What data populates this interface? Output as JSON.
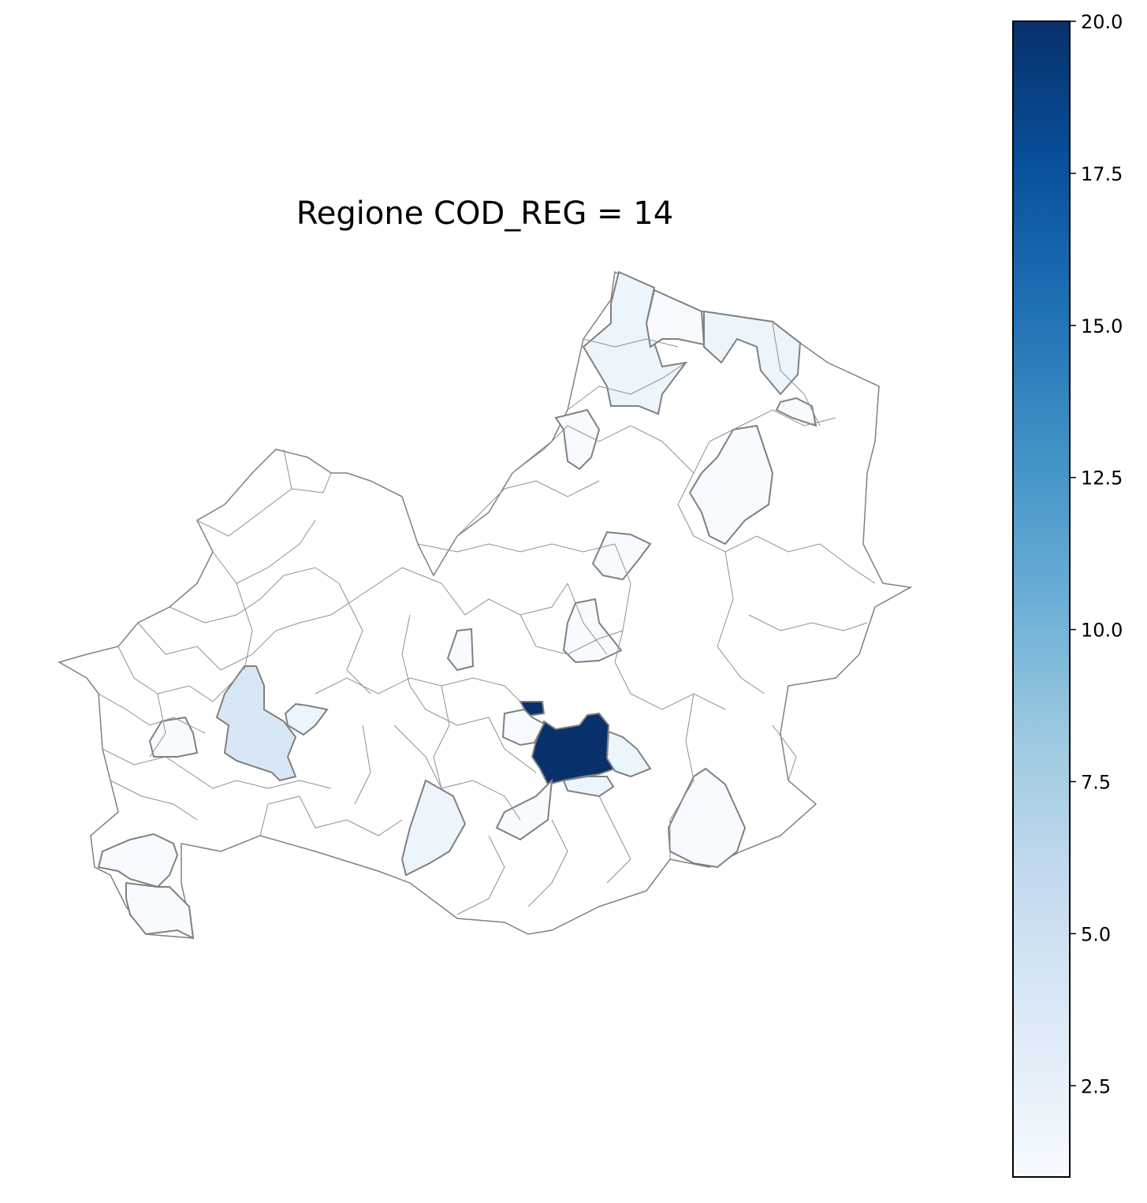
{
  "title": "Regione COD_REG = 14",
  "colormap": "Blues",
  "colors": {
    "boundary": "#808080",
    "low": "#f7fbff",
    "high": "#08306b"
  },
  "chart_data": {
    "type": "choropleth",
    "title": "Regione COD_REG = 14",
    "colorbar": {
      "min": 1,
      "max": 20,
      "ticks": [
        "2.5",
        "5.0",
        "7.5",
        "10.0",
        "12.5",
        "15.0",
        "17.5",
        "20.0"
      ],
      "tick_values": [
        2.5,
        5.0,
        7.5,
        10.0,
        12.5,
        15.0,
        17.5,
        20.0
      ],
      "placement": "right"
    },
    "regions": [
      {
        "id": "north-coast-west",
        "value": 2
      },
      {
        "id": "north-coast-mid",
        "value": 1
      },
      {
        "id": "north-coast-east",
        "value": 2
      },
      {
        "id": "north-small-east",
        "value": 1
      },
      {
        "id": "north-inland-a",
        "value": 1
      },
      {
        "id": "north-inland-tall",
        "value": 1
      },
      {
        "id": "center-north",
        "value": 1
      },
      {
        "id": "center-mid",
        "value": 1
      },
      {
        "id": "center-small",
        "value": 1
      },
      {
        "id": "center-darkest-main",
        "value": 20
      },
      {
        "id": "center-darkest-notch",
        "value": 20
      },
      {
        "id": "center-left-of-main",
        "value": 1
      },
      {
        "id": "center-right-of-main",
        "value": 2
      },
      {
        "id": "center-below-main",
        "value": 2
      },
      {
        "id": "south-center",
        "value": 1
      },
      {
        "id": "south-east",
        "value": 1
      },
      {
        "id": "south-mid",
        "value": 2
      },
      {
        "id": "west-big",
        "value": 4
      },
      {
        "id": "west-small",
        "value": 2
      },
      {
        "id": "west-far",
        "value": 1
      },
      {
        "id": "southwest-a",
        "value": 1
      },
      {
        "id": "southwest-b",
        "value": 1
      }
    ]
  }
}
